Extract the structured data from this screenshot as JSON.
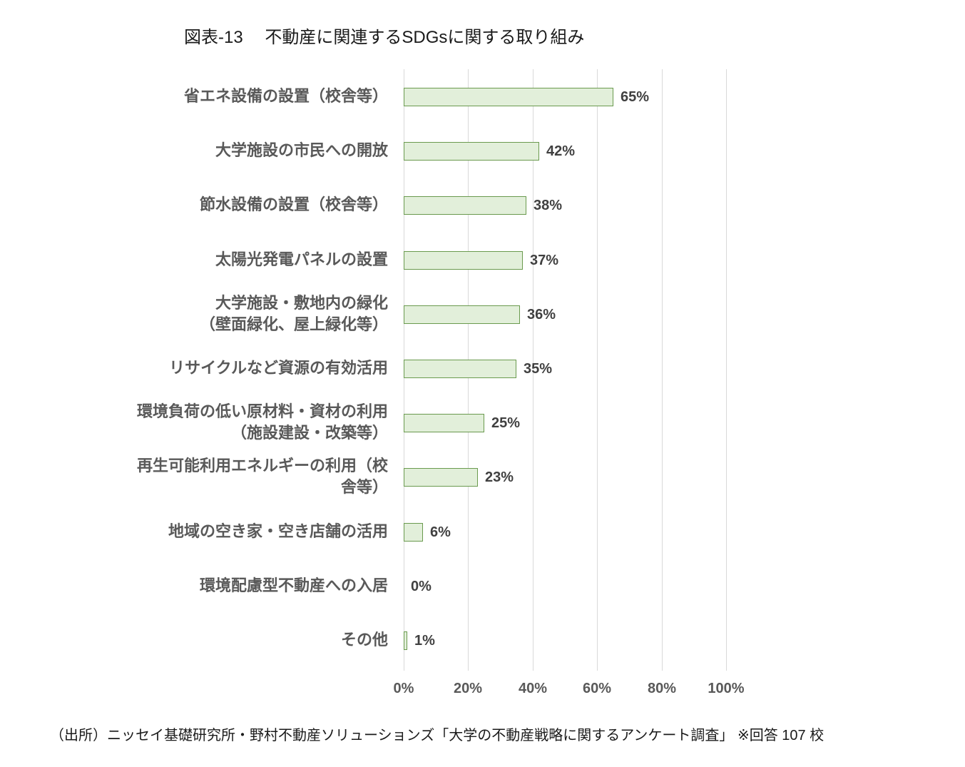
{
  "title": "図表-13　 不動産に関連するSDGsに関する取り組み",
  "source": "（出所）ニッセイ基礎研究所・野村不動産ソリューションズ「大学の不動産戦略に関するアンケート調査」 ※回答 107 校",
  "colors": {
    "bar_fill": "#e2efda",
    "bar_border": "#6a9a4e",
    "grid": "#d9d9d9",
    "label": "#595959"
  },
  "chart_data": {
    "type": "bar",
    "orientation": "horizontal",
    "title": "図表-13　不動産に関連するSDGsに関する取り組み",
    "xlabel": "",
    "ylabel": "",
    "xlim": [
      0,
      100
    ],
    "x_ticks": [
      "0%",
      "20%",
      "40%",
      "60%",
      "80%",
      "100%"
    ],
    "grid": true,
    "legend": null,
    "categories": [
      "省エネ設備の設置（校舎等）",
      "大学施設の市民への開放",
      "節水設備の設置（校舎等）",
      "太陽光発電パネルの設置",
      "大学施設・敷地内の緑化\n（壁面緑化、屋上緑化等）",
      "リサイクルなど資源の有効活用",
      "環境負荷の低い原材料・資材の利用\n（施設建設・改築等）",
      "再生可能利用エネルギーの利用（校\n舎等）",
      "地域の空き家・空き店舗の活用",
      "環境配慮型不動産への入居",
      "その他"
    ],
    "values": [
      65,
      42,
      38,
      37,
      36,
      35,
      25,
      23,
      6,
      0,
      1
    ],
    "value_labels": [
      "65%",
      "42%",
      "38%",
      "37%",
      "36%",
      "35%",
      "25%",
      "23%",
      "6%",
      "0%",
      "1%"
    ],
    "note": "※回答 107 校"
  }
}
